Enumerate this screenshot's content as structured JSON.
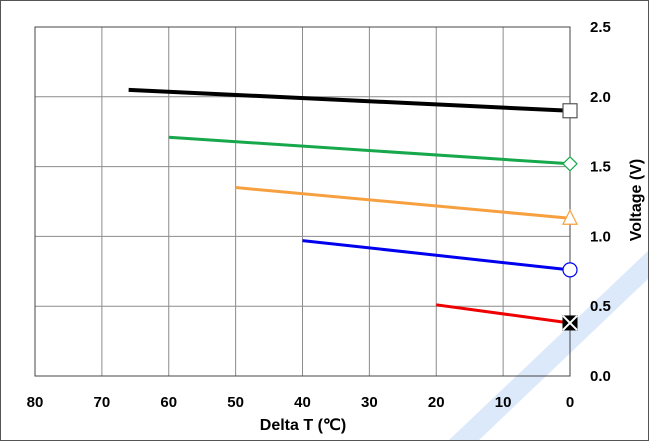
{
  "chart_data": {
    "type": "line",
    "title": "",
    "xlabel": "Delta T (℃)",
    "ylabel": "Voltage (V)",
    "xlim": [
      80,
      0
    ],
    "ylim": [
      0,
      2.5
    ],
    "x_ticks": [
      80,
      70,
      60,
      50,
      40,
      30,
      20,
      10,
      0
    ],
    "y_ticks": [
      0.0,
      0.5,
      1.0,
      1.5,
      2.0,
      2.5
    ],
    "y_tick_labels": [
      "0.0",
      "0.5",
      "1.0",
      "1.5",
      "2.0",
      "2.5"
    ],
    "grid": true,
    "y_axis_side": "right",
    "decoration": {
      "diagonal_band_color": "#dce9fb"
    },
    "series": [
      {
        "color": "#000000",
        "marker": "square-open",
        "line_width": 4,
        "points": [
          [
            66,
            2.05
          ],
          [
            0,
            1.9
          ]
        ]
      },
      {
        "color": "#17a84b",
        "marker": "diamond-open",
        "line_width": 3,
        "points": [
          [
            60,
            1.71
          ],
          [
            0,
            1.52
          ]
        ]
      },
      {
        "color": "#f7a040",
        "marker": "triangle-open",
        "line_width": 3,
        "points": [
          [
            50,
            1.35
          ],
          [
            0,
            1.13
          ]
        ]
      },
      {
        "color": "#0000ee",
        "marker": "circle-open",
        "line_width": 3,
        "points": [
          [
            40,
            0.97
          ],
          [
            0,
            0.76
          ]
        ]
      },
      {
        "color": "#ee0000",
        "marker": "x-square-filled",
        "line_width": 3,
        "points": [
          [
            20,
            0.51
          ],
          [
            0,
            0.38
          ]
        ]
      }
    ]
  }
}
